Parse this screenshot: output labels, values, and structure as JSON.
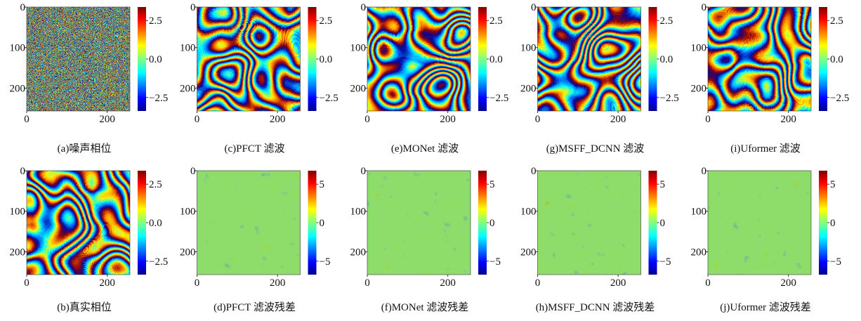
{
  "panels": [
    {
      "caption": "(a)噪声相位",
      "yticks": [
        "0",
        "100",
        "200"
      ],
      "xticks": [
        "0",
        "200"
      ],
      "colorbar_ticks": [
        "2.5",
        "0.0",
        "−2.5"
      ]
    },
    {
      "caption": "(c)PFCT 滤波",
      "yticks": [
        "0",
        "100",
        "200"
      ],
      "xticks": [
        "0",
        "200"
      ],
      "colorbar_ticks": [
        "2.5",
        "0.0",
        "−2.5"
      ]
    },
    {
      "caption": "(e)MONet 滤波",
      "yticks": [
        "0",
        "100",
        "200"
      ],
      "xticks": [
        "0",
        "200"
      ],
      "colorbar_ticks": [
        "2.5",
        "0.0",
        "−2.5"
      ]
    },
    {
      "caption": "(g)MSFF_DCNN 滤波",
      "yticks": [
        "0",
        "100",
        "200"
      ],
      "xticks": [
        "0",
        "200"
      ],
      "colorbar_ticks": [
        "2.5",
        "0.0",
        "−2.5"
      ]
    },
    {
      "caption": "(i)Uformer 滤波",
      "yticks": [
        "0",
        "100",
        "200"
      ],
      "xticks": [
        "0",
        "200"
      ],
      "colorbar_ticks": [
        "2.5",
        "0.0",
        "−2.5"
      ]
    },
    {
      "caption": "(b)真实相位",
      "yticks": [
        "0",
        "100",
        "200"
      ],
      "xticks": [
        "0",
        "200"
      ],
      "colorbar_ticks": [
        "2.5",
        "0.0",
        "−2.5"
      ]
    },
    {
      "caption": "(d)PFCT 滤波残差",
      "yticks": [
        "0",
        "100",
        "200"
      ],
      "xticks": [
        "0",
        "200"
      ],
      "colorbar_ticks": [
        "5",
        "0",
        "−5"
      ]
    },
    {
      "caption": "(f)MONet 滤波残差",
      "yticks": [
        "0",
        "100",
        "200"
      ],
      "xticks": [
        "0",
        "200"
      ],
      "colorbar_ticks": [
        "5",
        "0",
        "−5"
      ]
    },
    {
      "caption": "(h)MSFF_DCNN 滤波残差",
      "yticks": [
        "0",
        "100",
        "200"
      ],
      "xticks": [
        "0",
        "200"
      ],
      "colorbar_ticks": [
        "5",
        "0",
        "−5"
      ]
    },
    {
      "caption": "(j)Uformer 滤波残差",
      "yticks": [
        "0",
        "100",
        "200"
      ],
      "xticks": [
        "0",
        "200"
      ],
      "colorbar_ticks": [
        "5",
        "0",
        "−5"
      ]
    }
  ]
}
